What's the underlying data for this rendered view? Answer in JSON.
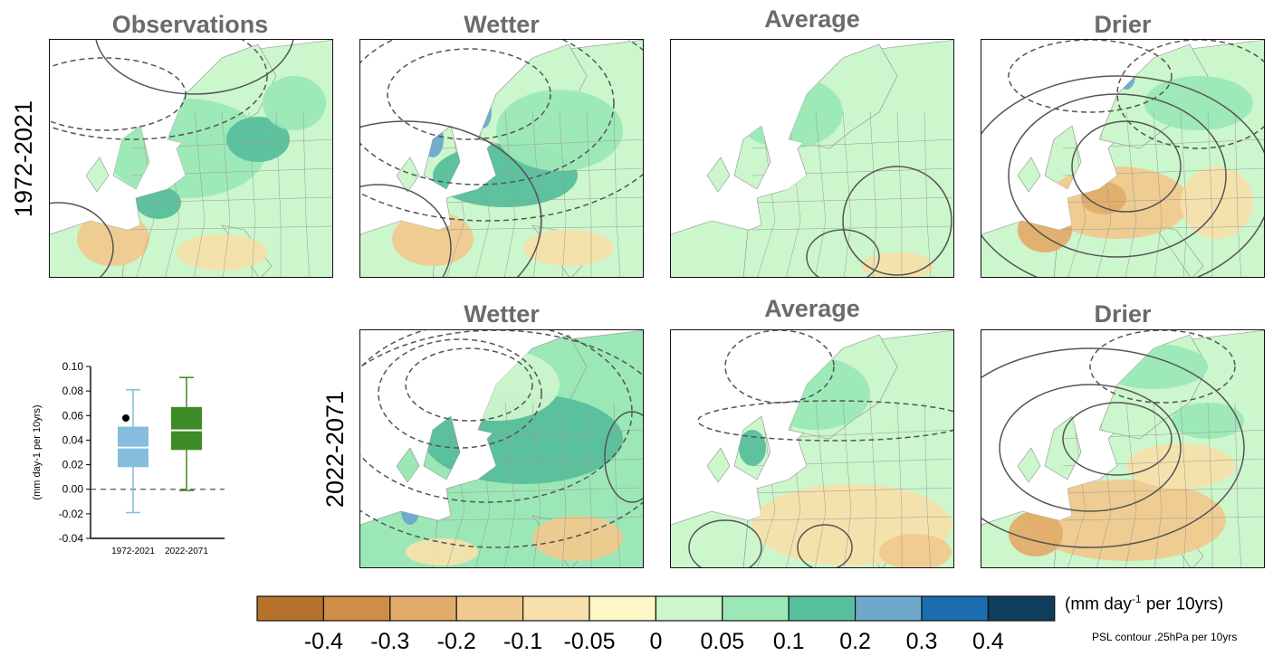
{
  "panels": {
    "observations": {
      "title": "Observations"
    },
    "hist_wetter": {
      "title": "Wetter"
    },
    "hist_average": {
      "title": "Average"
    },
    "hist_drier": {
      "title": "Drier"
    },
    "fut_wetter": {
      "title": "Wetter"
    },
    "fut_average": {
      "title": "Average"
    },
    "fut_drier": {
      "title": "Drier"
    }
  },
  "row_labels": {
    "historical": "1972-2021",
    "future": "2022-2071"
  },
  "colorbar": {
    "unit_main": "(mm day",
    "unit_sup": "-1",
    "unit_tail": " per 10yrs)",
    "psl_note": "PSL contour .25hPa per 10yrs",
    "ticks": [
      "-0.4",
      "-0.3",
      "-0.2",
      "-0.1",
      "-0.05",
      "0",
      "0.05",
      "0.1",
      "0.2",
      "0.3",
      "0.4"
    ],
    "colors": [
      "#b5722c",
      "#cf8e45",
      "#e2ad6c",
      "#f0c98e",
      "#f6e0ab",
      "#fdf6c6",
      "#ccf6cc",
      "#9be8b6",
      "#57bf9c",
      "#6ea9cb",
      "#1a6eb0",
      "#0f3d5e"
    ]
  },
  "chart_data": {
    "type": "boxplot",
    "ylabel": "(mm day-1 per 10yrs)",
    "ylim": [
      -0.04,
      0.1
    ],
    "yticks": [
      "0.10",
      "0.08",
      "0.06",
      "0.04",
      "0.02",
      "0.00",
      "-0.02",
      "-0.04"
    ],
    "reference_line": 0.0,
    "boxes": [
      {
        "label": "1972-2021",
        "whisker_low": -0.019,
        "q1": 0.018,
        "median": 0.034,
        "q3": 0.051,
        "whisker_high": 0.081,
        "point": 0.058,
        "color": "#86bcdd"
      },
      {
        "label": "2022-2071",
        "whisker_low": -0.001,
        "q1": 0.032,
        "median": 0.048,
        "q3": 0.067,
        "whisker_high": 0.091,
        "color": "#3d8a26"
      }
    ]
  }
}
